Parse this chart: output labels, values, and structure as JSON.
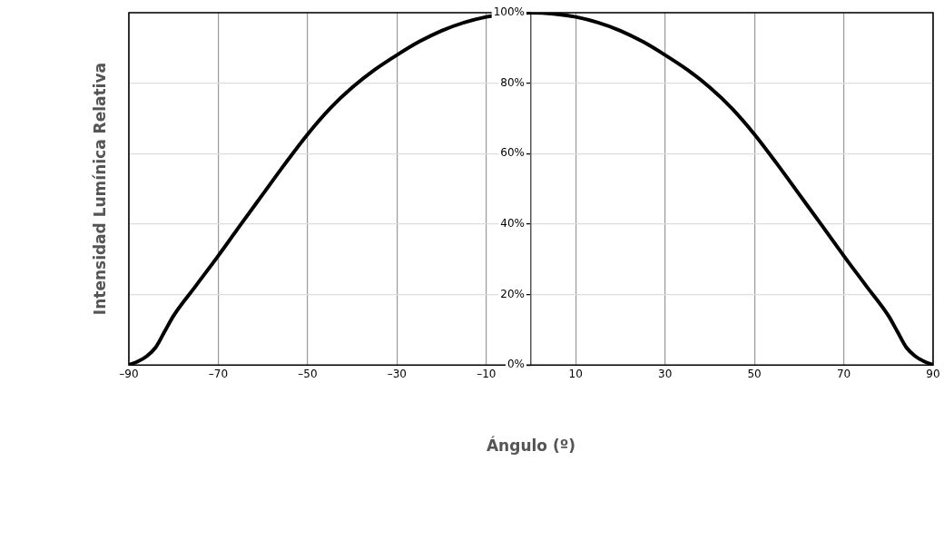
{
  "chart_data": {
    "type": "line",
    "xlabel": "Ángulo (º)",
    "ylabel": "Intensidad Lumínica Relativa",
    "x": [
      -90,
      -88,
      -86,
      -84,
      -82,
      -80,
      -75,
      -70,
      -65,
      -60,
      -55,
      -50,
      -45,
      -40,
      -35,
      -30,
      -25,
      -20,
      -15,
      -10,
      -8.5,
      0,
      5,
      10,
      15,
      20,
      25,
      30,
      35,
      40,
      45,
      50,
      55,
      60,
      65,
      70,
      75,
      80,
      82,
      84,
      86,
      88,
      90
    ],
    "series": [
      {
        "color": "#000000",
        "values": [
          0,
          1,
          2.5,
          5,
          9.5,
          14,
          22.5,
          31,
          39.8,
          48.5,
          57.2,
          65.5,
          72.8,
          78.8,
          83.8,
          88,
          91.8,
          94.9,
          97.2,
          98.8,
          99.1,
          100,
          99.7,
          98.8,
          97.2,
          94.9,
          91.8,
          88,
          83.8,
          78.8,
          72.8,
          65.5,
          57.2,
          48.5,
          39.8,
          31,
          22.5,
          14,
          9.5,
          5,
          2.5,
          1,
          0
        ]
      }
    ],
    "xlim": [
      -90,
      90
    ],
    "xticks": [
      {
        "value": -90,
        "label": "–90"
      },
      {
        "value": -70,
        "label": "–70"
      },
      {
        "value": -50,
        "label": "–50"
      },
      {
        "value": -30,
        "label": "–30"
      },
      {
        "value": -10,
        "label": "–10"
      },
      10,
      30,
      50,
      70,
      90
    ],
    "ylim": [
      0,
      100
    ],
    "yticks": [
      {
        "value": 0,
        "label": "0%"
      },
      {
        "value": 20,
        "label": "20%"
      },
      {
        "value": 40,
        "label": "40%"
      },
      {
        "value": 60,
        "label": "60%"
      },
      {
        "value": 80,
        "label": "80%"
      },
      {
        "value": 100,
        "label": "100%"
      }
    ],
    "grid": true,
    "legend": false,
    "marker": "none",
    "line_style": "solid"
  }
}
